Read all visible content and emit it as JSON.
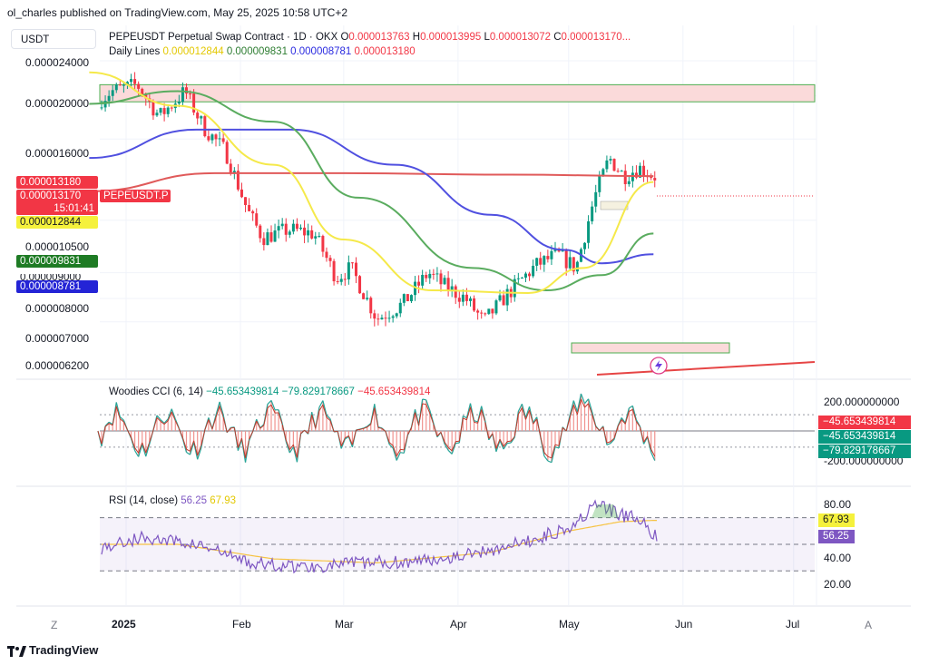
{
  "header": {
    "published": "ol_charles published on TradingView.com, May 25, 2025 10:58 UTC+2",
    "currency": "USDT",
    "symbol_title": "PEPEUSDT Perpetual Swap Contract · 1D · OKX",
    "ohlc": {
      "o_label": "O",
      "o_value": "0.000013763",
      "h_label": "H",
      "h_value": "0.000013995",
      "l_label": "L",
      "l_value": "0.000013072",
      "c_label": "C",
      "c_value": "0.000013170..."
    },
    "daily_lines_label": "Daily Lines",
    "daily_lines_values": [
      "0.000012844",
      "0.000009831",
      "0.000008781",
      "0.000013180"
    ]
  },
  "price_axis_labels": [
    {
      "text": "0.000024000",
      "value": 2.4e-05
    },
    {
      "text": "0.000020000",
      "value": 2e-05
    },
    {
      "text": "0.000016000",
      "value": 1.6e-05
    },
    {
      "text": "0.000010500",
      "value": 1.05e-05
    },
    {
      "text": "0.000008000",
      "value": 8e-06
    },
    {
      "text": "0.000007000",
      "value": 7e-06
    },
    {
      "text": "0.000006200",
      "value": 6.2e-06
    }
  ],
  "price_tags": {
    "line_price": "0.000013180",
    "last_price": "0.000013170",
    "countdown": "15:01:41",
    "symbol": "PEPEUSDT.P",
    "ma_yellow": "0.000012844",
    "ma_green": "0.000009831",
    "ma_blue": "0.000008781",
    "hidden_tag": "0.000009000"
  },
  "colors": {
    "up": "#089981",
    "down": "#f23645",
    "ma_yellow": "#f5e94a",
    "ma_green": "#5aac5f",
    "ma_blue": "#5050e0",
    "ma_red": "#e05a5a",
    "zone_fill": "#fbdada",
    "zone_stroke": "#4caf50",
    "rsi": "#7e57c2",
    "rsi_ma": "#f6c343"
  },
  "cci": {
    "label": "Woodies CCI (6, 14)",
    "values": [
      "−45.653439814",
      "−79.829178667",
      "−45.653439814"
    ],
    "axis_label": "200.000000000",
    "axis_label_low": "-200.000000000",
    "tags": [
      "−45.653439814",
      "−45.653439814",
      "−79.829178667"
    ]
  },
  "rsi": {
    "label": "RSI (14, close)",
    "value": "56.25",
    "ma_value": "67.93",
    "axis_labels": [
      "80.00",
      "40.00",
      "20.00"
    ],
    "tags": [
      "67.93",
      "56.25"
    ]
  },
  "x_axis": {
    "labels": [
      "2025",
      "Feb",
      "Mar",
      "Apr",
      "May",
      "Jun",
      "Jul"
    ],
    "left_button": "Z",
    "right_button": "A"
  },
  "footer": {
    "logo": "TradingView"
  },
  "chart_data": {
    "type": "candlestick",
    "timeframe": "1D",
    "y_scale": "log",
    "ylim": [
      5.8e-06,
      2.62e-05
    ],
    "x_range": [
      "2024-12-20",
      "2025-07-08"
    ],
    "resistance_zone": [
      1.94e-05,
      2.12e-05
    ],
    "support_zone": [
      6.3e-06,
      6.6e-06
    ],
    "candles_close_approx": [
      [
        "2024-12-22",
        1.88e-05
      ],
      [
        "2024-12-28",
        2.05e-05
      ],
      [
        "2025-01-04",
        2.12e-05
      ],
      [
        "2025-01-10",
        1.8e-05
      ],
      [
        "2025-01-17",
        2.05e-05
      ],
      [
        "2025-01-22",
        1.7e-05
      ],
      [
        "2025-01-28",
        1.5e-05
      ],
      [
        "2025-02-03",
        1.1e-05
      ],
      [
        "2025-02-07",
        9.6e-06
      ],
      [
        "2025-02-14",
        1e-05
      ],
      [
        "2025-02-21",
        9.8e-06
      ],
      [
        "2025-02-27",
        7.8e-06
      ],
      [
        "2025-03-03",
        8.2e-06
      ],
      [
        "2025-03-10",
        6.3e-06
      ],
      [
        "2025-03-17",
        6.8e-06
      ],
      [
        "2025-03-24",
        8e-06
      ],
      [
        "2025-03-28",
        7.5e-06
      ],
      [
        "2025-04-03",
        7e-06
      ],
      [
        "2025-04-08",
        6.2e-06
      ],
      [
        "2025-04-14",
        7.1e-06
      ],
      [
        "2025-04-22",
        8.3e-06
      ],
      [
        "2025-04-28",
        8.8e-06
      ],
      [
        "2025-05-03",
        8.2e-06
      ],
      [
        "2025-05-08",
        1.18e-05
      ],
      [
        "2025-05-12",
        1.45e-05
      ],
      [
        "2025-05-16",
        1.32e-05
      ],
      [
        "2025-05-20",
        1.38e-05
      ],
      [
        "2025-05-24",
        1.32e-05
      ]
    ],
    "ma_yellow": [
      [
        "2024-12-22",
        2.26e-05
      ],
      [
        "2025-01-15",
        1.9e-05
      ],
      [
        "2025-02-10",
        1.4e-05
      ],
      [
        "2025-03-01",
        9.5e-06
      ],
      [
        "2025-03-25",
        7.3e-06
      ],
      [
        "2025-04-20",
        7.2e-06
      ],
      [
        "2025-05-05",
        8.2e-06
      ],
      [
        "2025-05-24",
        1.28e-05
      ]
    ],
    "ma_green": [
      [
        "2024-12-22",
        1.92e-05
      ],
      [
        "2025-01-15",
        2.05e-05
      ],
      [
        "2025-02-10",
        1.75e-05
      ],
      [
        "2025-03-05",
        1.18e-05
      ],
      [
        "2025-04-05",
        8.2e-06
      ],
      [
        "2025-04-25",
        7.3e-06
      ],
      [
        "2025-05-10",
        7.9e-06
      ],
      [
        "2025-05-24",
        9.8e-06
      ]
    ],
    "ma_blue": [
      [
        "2024-12-22",
        1.45e-05
      ],
      [
        "2025-01-20",
        1.68e-05
      ],
      [
        "2025-02-15",
        1.68e-05
      ],
      [
        "2025-03-15",
        1.4e-05
      ],
      [
        "2025-04-10",
        1.08e-05
      ],
      [
        "2025-04-30",
        9e-06
      ],
      [
        "2025-05-10",
        8.4e-06
      ],
      [
        "2025-05-24",
        8.8e-06
      ]
    ],
    "ma_red": [
      [
        "2024-12-22",
        1.22e-05
      ],
      [
        "2025-01-25",
        1.34e-05
      ],
      [
        "2025-03-01",
        1.34e-05
      ],
      [
        "2025-04-15",
        1.33e-05
      ],
      [
        "2025-05-24",
        1.32e-05
      ]
    ],
    "cci_axis": [
      -200,
      200
    ],
    "rsi_axis": [
      20,
      80
    ],
    "rsi_levels": [
      70,
      50,
      30
    ],
    "rsi_series": [
      [
        "2024-12-22",
        45
      ],
      [
        "2025-01-05",
        55
      ],
      [
        "2025-01-20",
        50
      ],
      [
        "2025-02-05",
        35
      ],
      [
        "2025-02-20",
        33
      ],
      [
        "2025-03-05",
        36
      ],
      [
        "2025-03-20",
        37
      ],
      [
        "2025-04-05",
        43
      ],
      [
        "2025-04-20",
        52
      ],
      [
        "2025-05-01",
        63
      ],
      [
        "2025-05-09",
        80
      ],
      [
        "2025-05-15",
        72
      ],
      [
        "2025-05-20",
        70
      ],
      [
        "2025-05-24",
        56
      ]
    ],
    "rsi_ma_series": [
      [
        "2024-12-22",
        50
      ],
      [
        "2025-01-15",
        50
      ],
      [
        "2025-02-10",
        39
      ],
      [
        "2025-03-10",
        36
      ],
      [
        "2025-04-10",
        44
      ],
      [
        "2025-05-01",
        60
      ],
      [
        "2025-05-15",
        67
      ],
      [
        "2025-05-24",
        68
      ]
    ]
  }
}
